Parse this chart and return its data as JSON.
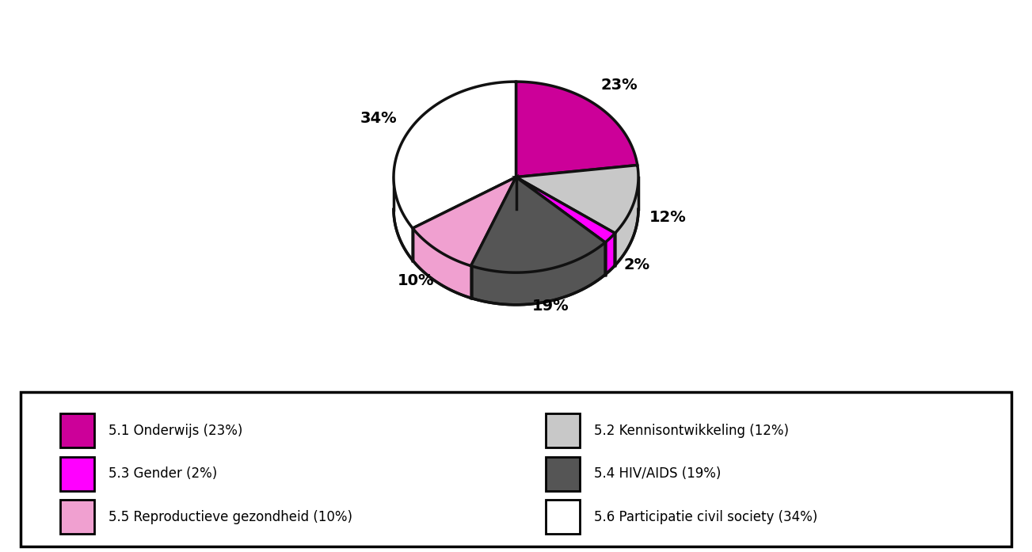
{
  "slices": [
    23,
    12,
    2,
    19,
    10,
    34
  ],
  "labels": [
    "23%",
    "12%",
    "2%",
    "19%",
    "10%",
    "34%"
  ],
  "colors": [
    "#CC0099",
    "#C8C8C8",
    "#FF00FF",
    "#555555",
    "#F0A0D0",
    "#FFFFFF"
  ],
  "edge_color": "#111111",
  "startangle": 90,
  "legend_labels": [
    "5.1 Onderwijs (23%)",
    "5.2 Kennisontwikkeling (12%)",
    "5.3 Gender (2%)",
    "5.4 HIV/AIDS (19%)",
    "5.5 Reproductieve gezondheid (10%)",
    "5.6 Participatie civil society (34%)"
  ],
  "legend_colors": [
    "#CC0099",
    "#C8C8C8",
    "#FF00FF",
    "#555555",
    "#F0A0D0",
    "#FFFFFF"
  ],
  "background_color": "#FFFFFF"
}
